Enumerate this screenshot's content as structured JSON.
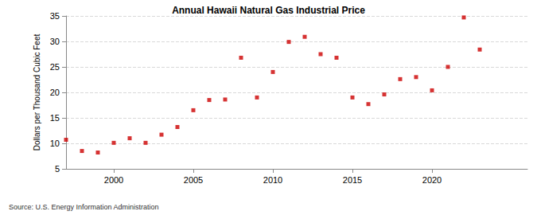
{
  "chart_data": {
    "type": "scatter",
    "title": "Annual Hawaii Natural Gas Industrial Price",
    "y_label": "Dollars per Thousand Cubic Feet",
    "source": "Source: U.S. Energy Information Administration",
    "x": [
      1997,
      1998,
      1999,
      2000,
      2001,
      2002,
      2003,
      2004,
      2005,
      2006,
      2007,
      2008,
      2009,
      2010,
      2011,
      2012,
      2013,
      2014,
      2015,
      2016,
      2017,
      2018,
      2019,
      2020,
      2021,
      2022,
      2023
    ],
    "values": [
      10.7,
      8.5,
      8.2,
      10.1,
      11.0,
      10.1,
      11.7,
      13.2,
      16.5,
      18.5,
      18.6,
      26.8,
      19.0,
      24.0,
      29.9,
      30.9,
      27.5,
      26.8,
      19.0,
      17.7,
      19.6,
      22.6,
      23.0,
      20.4,
      25.0,
      34.7,
      28.4
    ],
    "color": "#cc0000",
    "marker": "square",
    "xlim": [
      1997,
      2026
    ],
    "xticks": [
      2000,
      2005,
      2010,
      2015,
      2020
    ],
    "ylim": [
      5,
      35
    ],
    "yticks": [
      5,
      10,
      15,
      20,
      25,
      30,
      35
    ],
    "grid": true
  }
}
